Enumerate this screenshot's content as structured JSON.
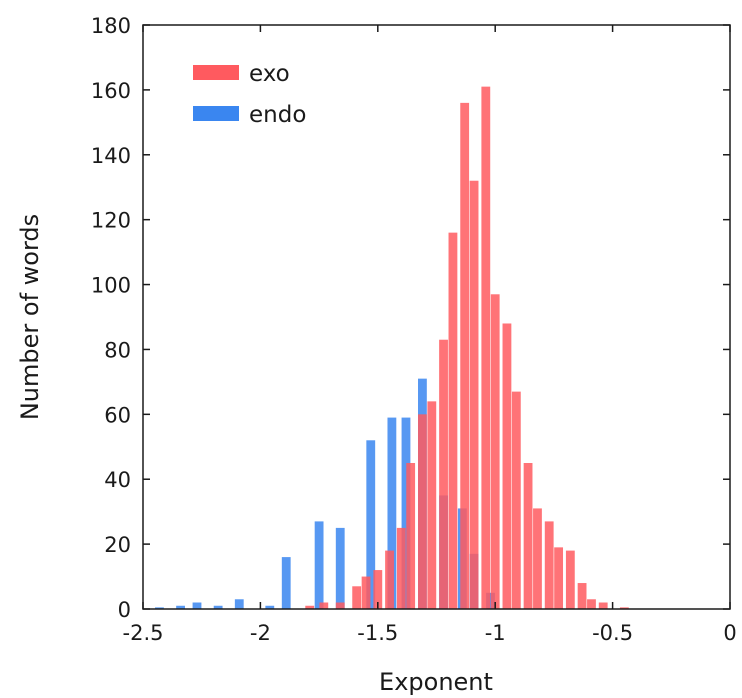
{
  "chart_data": {
    "type": "bar",
    "title": "",
    "xlabel": "Exponent",
    "ylabel": "Number of words",
    "xlim": [
      -2.5,
      0
    ],
    "ylim": [
      0,
      180
    ],
    "bin_width": 0.0458,
    "grid": false,
    "legend_position": "top-left",
    "x_ticks": [
      {
        "value": -2.5,
        "label": "-2.5"
      },
      {
        "value": -2.0,
        "label": "-2"
      },
      {
        "value": -1.5,
        "label": "-1.5"
      },
      {
        "value": -1.0,
        "label": "-1"
      },
      {
        "value": -0.5,
        "label": "-0.5"
      },
      {
        "value": 0.0,
        "label": "0"
      }
    ],
    "y_ticks": [
      {
        "value": 0,
        "label": "0"
      },
      {
        "value": 20,
        "label": "20"
      },
      {
        "value": 40,
        "label": "40"
      },
      {
        "value": 60,
        "label": "60"
      },
      {
        "value": 80,
        "label": "80"
      },
      {
        "value": 100,
        "label": "100"
      },
      {
        "value": 120,
        "label": "120"
      },
      {
        "value": 140,
        "label": "140"
      },
      {
        "value": 160,
        "label": "160"
      },
      {
        "value": 180,
        "label": "180"
      }
    ],
    "series": [
      {
        "name": "endo",
        "color": "#3a86f0",
        "opacity": 0.85,
        "points": [
          {
            "x": -2.43,
            "y": 0.5
          },
          {
            "x": -2.34,
            "y": 1
          },
          {
            "x": -2.27,
            "y": 2
          },
          {
            "x": -2.18,
            "y": 1
          },
          {
            "x": -2.09,
            "y": 3
          },
          {
            "x": -1.96,
            "y": 1
          },
          {
            "x": -1.89,
            "y": 16
          },
          {
            "x": -1.75,
            "y": 27
          },
          {
            "x": -1.66,
            "y": 25
          },
          {
            "x": -1.53,
            "y": 52
          },
          {
            "x": -1.44,
            "y": 59
          },
          {
            "x": -1.38,
            "y": 59
          },
          {
            "x": -1.31,
            "y": 71
          },
          {
            "x": -1.22,
            "y": 35
          },
          {
            "x": -1.14,
            "y": 31
          },
          {
            "x": -1.09,
            "y": 17
          },
          {
            "x": -1.02,
            "y": 5
          }
        ]
      },
      {
        "name": "exo",
        "color": "#ff5a5f",
        "opacity": 0.85,
        "points": [
          {
            "x": -1.79,
            "y": 1
          },
          {
            "x": -1.73,
            "y": 2
          },
          {
            "x": -1.66,
            "y": 2
          },
          {
            "x": -1.59,
            "y": 7
          },
          {
            "x": -1.55,
            "y": 10
          },
          {
            "x": -1.5,
            "y": 12
          },
          {
            "x": -1.45,
            "y": 18
          },
          {
            "x": -1.4,
            "y": 25
          },
          {
            "x": -1.36,
            "y": 45
          },
          {
            "x": -1.31,
            "y": 60
          },
          {
            "x": -1.27,
            "y": 64
          },
          {
            "x": -1.22,
            "y": 83
          },
          {
            "x": -1.18,
            "y": 116
          },
          {
            "x": -1.13,
            "y": 156
          },
          {
            "x": -1.09,
            "y": 132
          },
          {
            "x": -1.04,
            "y": 161
          },
          {
            "x": -1.0,
            "y": 97
          },
          {
            "x": -0.95,
            "y": 88
          },
          {
            "x": -0.91,
            "y": 67
          },
          {
            "x": -0.86,
            "y": 45
          },
          {
            "x": -0.82,
            "y": 31
          },
          {
            "x": -0.77,
            "y": 27
          },
          {
            "x": -0.73,
            "y": 19
          },
          {
            "x": -0.68,
            "y": 18
          },
          {
            "x": -0.63,
            "y": 8
          },
          {
            "x": -0.59,
            "y": 3
          },
          {
            "x": -0.54,
            "y": 2
          },
          {
            "x": -0.45,
            "y": 0.5
          }
        ]
      }
    ]
  },
  "legend": [
    {
      "name": "exo",
      "color": "#ff5a5f"
    },
    {
      "name": "endo",
      "color": "#3a86f0"
    }
  ]
}
